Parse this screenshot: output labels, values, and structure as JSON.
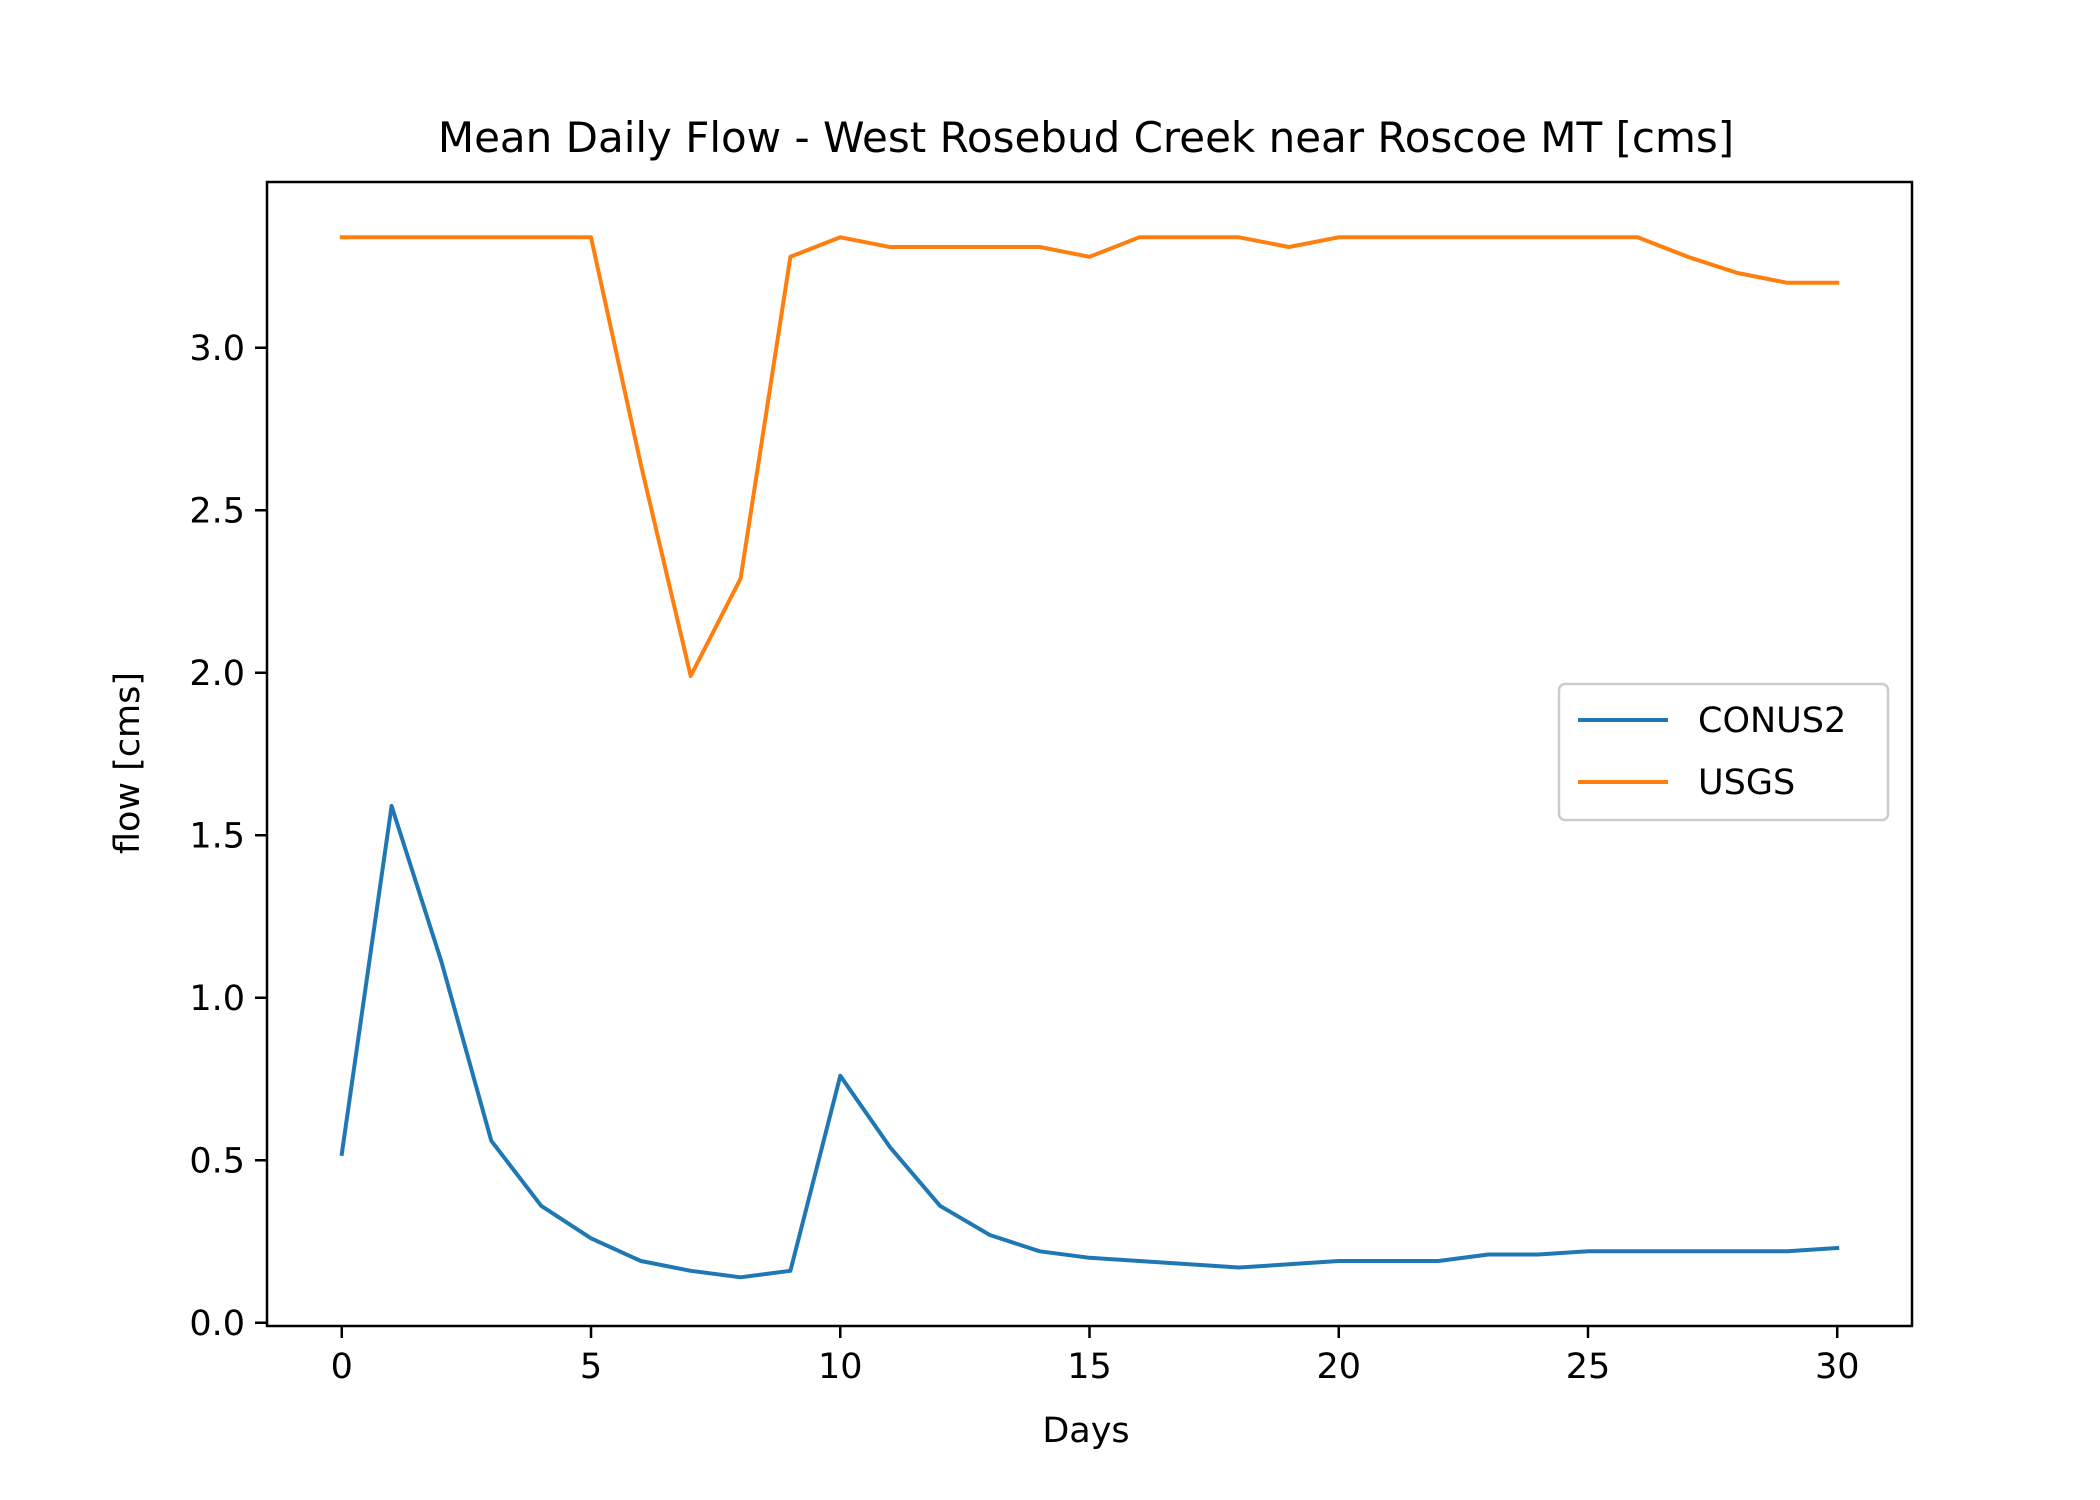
{
  "chart_data": {
    "type": "line",
    "title": "Mean Daily Flow - West Rosebud Creek near Roscoe MT [cms]",
    "xlabel": "Days",
    "ylabel": "flow [cms]",
    "xlim": [
      -1.5,
      31.5
    ],
    "ylim": [
      -0.01,
      3.51
    ],
    "xticks": [
      0,
      5,
      10,
      15,
      20,
      25,
      30
    ],
    "xtick_labels": [
      "0",
      "5",
      "10",
      "15",
      "20",
      "25",
      "30"
    ],
    "yticks": [
      0.0,
      0.5,
      1.0,
      1.5,
      2.0,
      2.5,
      3.0
    ],
    "ytick_labels": [
      "0.0",
      "0.5",
      "1.0",
      "1.5",
      "2.0",
      "2.5",
      "3.0"
    ],
    "grid": false,
    "legend_position": "center-right",
    "x": [
      0,
      1,
      2,
      3,
      4,
      5,
      6,
      7,
      8,
      9,
      10,
      11,
      12,
      13,
      14,
      15,
      16,
      17,
      18,
      19,
      20,
      21,
      22,
      23,
      24,
      25,
      26,
      27,
      28,
      29,
      30
    ],
    "series": [
      {
        "name": "CONUS2",
        "color": "#1f77b4",
        "values": [
          0.52,
          1.59,
          1.11,
          0.56,
          0.36,
          0.26,
          0.19,
          0.16,
          0.14,
          0.16,
          0.76,
          0.54,
          0.36,
          0.27,
          0.22,
          0.2,
          0.19,
          0.18,
          0.17,
          0.18,
          0.19,
          0.19,
          0.19,
          0.21,
          0.21,
          0.22,
          0.22,
          0.22,
          0.22,
          0.22,
          0.23
        ]
      },
      {
        "name": "USGS",
        "color": "#ff7f0e",
        "values": [
          3.34,
          3.34,
          3.34,
          3.34,
          3.34,
          3.34,
          2.64,
          1.99,
          2.29,
          3.28,
          3.34,
          3.31,
          3.31,
          3.31,
          3.31,
          3.28,
          3.34,
          3.34,
          3.34,
          3.31,
          3.34,
          3.34,
          3.34,
          3.34,
          3.34,
          3.34,
          3.34,
          3.28,
          3.23,
          3.2,
          3.2
        ]
      }
    ]
  }
}
